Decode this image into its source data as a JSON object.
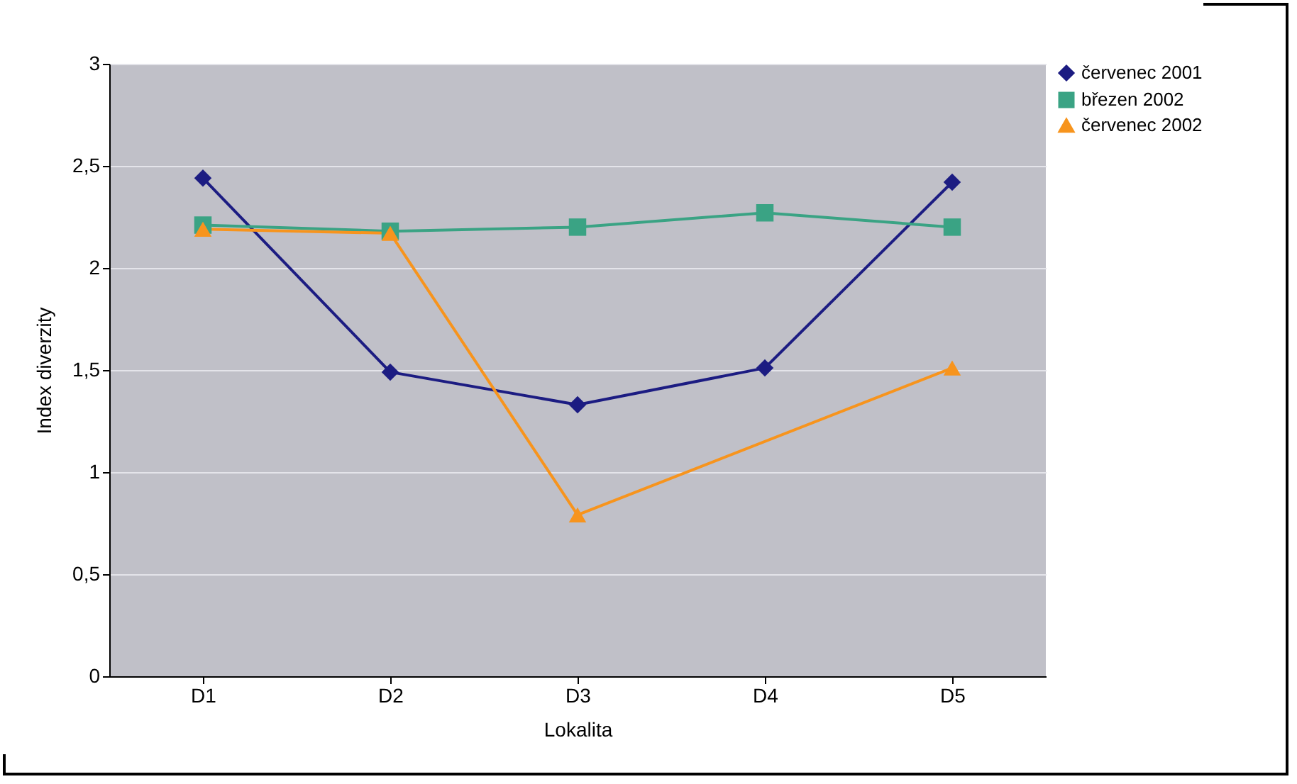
{
  "chart_data": {
    "type": "line",
    "xlabel": "Lokalita",
    "ylabel": "Index diverzity",
    "categories": [
      "D1",
      "D2",
      "D3",
      "D4",
      "D5"
    ],
    "series": [
      {
        "name": "červenec 2001",
        "color": "#1c1c82",
        "marker": "diamond",
        "values": [
          2.44,
          1.49,
          1.33,
          1.51,
          2.42
        ]
      },
      {
        "name": "březen 2002",
        "color": "#3aa384",
        "marker": "square",
        "values": [
          2.21,
          2.18,
          2.2,
          2.27,
          2.2
        ]
      },
      {
        "name": "červenec 2002",
        "color": "#f7941d",
        "marker": "triangle",
        "values": [
          2.19,
          2.17,
          0.79,
          null,
          1.51
        ]
      }
    ],
    "ylim": [
      0,
      3
    ],
    "yticks": [
      0,
      {
        "value": 0.5,
        "label": "0,5"
      },
      1,
      {
        "value": 1.5,
        "label": "1,5"
      },
      2,
      {
        "value": 2.5,
        "label": "2,5"
      },
      3
    ],
    "grid": "y",
    "legend": "right",
    "line_style": "solid"
  }
}
